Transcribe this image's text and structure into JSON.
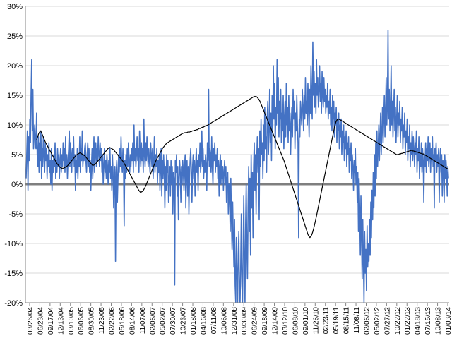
{
  "chart_data": {
    "type": "line",
    "title": "",
    "xlabel": "",
    "ylabel": "",
    "ylim": [
      -20,
      30
    ],
    "y_ticks": [
      "30%",
      "25%",
      "20%",
      "15%",
      "10%",
      "5%",
      "0%",
      "-5%",
      "-10%",
      "-15%",
      "-20%"
    ],
    "y_tick_values": [
      30,
      25,
      20,
      15,
      10,
      5,
      0,
      -5,
      -10,
      -15,
      -20
    ],
    "x_ticks": [
      "03/26/04",
      "06/23/04",
      "09/17/04",
      "12/13/04",
      "03/10/05",
      "06/06/05",
      "08/30/05",
      "11/23/05",
      "02/22/06",
      "05/18/06",
      "08/14/06",
      "11/07/06",
      "02/06/07",
      "05/02/07",
      "07/30/07",
      "10/23/07",
      "01/18/08",
      "04/16/08",
      "07/11/08",
      "10/06/08",
      "12/31/08",
      "03/30/09",
      "06/24/09",
      "09/18/09",
      "12/14/09",
      "03/12/10",
      "06/08/10",
      "09/01/10",
      "11/26/10",
      "02/23/11",
      "05/19/11",
      "08/15/11",
      "11/08/11",
      "02/06/12",
      "05/02/12",
      "07/27/12",
      "10/22/12",
      "01/22/13",
      "04/18/13",
      "07/15/13",
      "10/08/13",
      "01/03/14"
    ],
    "grid": true,
    "legend": "none",
    "colors": {
      "weekly": "#4472C4",
      "moving_average": "#000000",
      "zero_line": "#7F7F7F",
      "grid": "#D9D9D9",
      "axis": "#868686"
    },
    "series": [
      {
        "values": [
          1,
          5,
          9,
          -1,
          8,
          4,
          11,
          7,
          15,
          21,
          9,
          16,
          6,
          8,
          10,
          7,
          6,
          12,
          5,
          3,
          8,
          2,
          7,
          4,
          9,
          1,
          6,
          3,
          8,
          5,
          2,
          7,
          4,
          6,
          1,
          5,
          3,
          7,
          2,
          4,
          0,
          6,
          -1,
          4,
          2,
          5,
          3,
          7,
          1,
          4,
          2,
          6,
          3,
          5,
          1,
          4,
          6,
          2,
          5,
          3,
          7,
          4,
          6,
          2,
          8,
          3,
          5,
          1,
          4,
          6,
          9,
          3,
          7,
          5,
          2,
          6,
          4,
          8,
          3,
          5,
          -1,
          4,
          2,
          6,
          1,
          5,
          3,
          8,
          2,
          6,
          4,
          9,
          3,
          5,
          4,
          6,
          7,
          4,
          2,
          5,
          7,
          3,
          6,
          2,
          4,
          -1,
          3,
          6,
          1,
          4,
          8,
          2,
          5,
          7,
          3,
          6,
          4,
          8,
          5,
          3,
          7,
          4,
          6,
          2,
          5,
          0,
          3,
          6,
          2,
          4,
          1,
          5,
          3,
          0,
          4,
          2,
          6,
          1,
          3,
          -1,
          5,
          2,
          -4,
          1,
          3,
          -13,
          2,
          4,
          -3,
          1,
          5,
          2,
          6,
          3,
          8,
          4,
          2,
          6,
          3,
          -7,
          4,
          1,
          5,
          2,
          6,
          3,
          7,
          4,
          2,
          5,
          3,
          6,
          4,
          7,
          2,
          10,
          4,
          6,
          3,
          5,
          8,
          4,
          6,
          2,
          9,
          5,
          3,
          7,
          4,
          6,
          2,
          11,
          5,
          3,
          7,
          4,
          8,
          5,
          3,
          6,
          4,
          2,
          7,
          5,
          3,
          6,
          1,
          4,
          8,
          2,
          5,
          3,
          6,
          0,
          4,
          2,
          5,
          -1,
          3,
          6,
          -2,
          4,
          1,
          5,
          2,
          -4,
          3,
          -1,
          5,
          2,
          4,
          -3,
          1,
          3,
          -2,
          4,
          0,
          3,
          -5,
          2,
          1,
          -17,
          4,
          2,
          5,
          -2,
          3,
          -6,
          1,
          4,
          2,
          -3,
          3,
          0,
          4,
          2,
          -1,
          3,
          5,
          -4,
          2,
          4,
          -2,
          3,
          -5,
          1,
          4,
          6,
          2,
          -3,
          3,
          5,
          1,
          4,
          -2,
          3,
          6,
          2,
          4,
          -1,
          5,
          3,
          7,
          2,
          4,
          9,
          3,
          6,
          1,
          4,
          2,
          5,
          3,
          -1,
          7,
          4,
          16,
          3,
          6,
          5,
          2,
          8,
          3,
          0,
          6,
          4,
          7,
          2,
          5,
          3,
          6,
          1,
          4,
          -2,
          3,
          5,
          0,
          4,
          1,
          3,
          -1,
          2,
          4,
          0,
          3,
          -3,
          1,
          2,
          -5,
          0,
          -2,
          -8,
          1,
          -6,
          -11,
          -3,
          -9,
          -14,
          -6,
          -17,
          -21,
          -9,
          -15,
          -24,
          -12,
          -8,
          -19,
          -26,
          -14,
          -5,
          -17,
          -23,
          -11,
          -2,
          -13,
          -20,
          -7,
          0,
          -11,
          -16,
          -4,
          3,
          -8,
          1,
          -12,
          5,
          -4,
          2,
          -9,
          3,
          7,
          -1,
          5,
          -5,
          4,
          8,
          2,
          6,
          -6,
          9,
          3,
          11,
          5,
          7,
          1,
          10,
          4,
          13,
          6,
          8,
          2,
          11,
          14,
          5,
          9,
          16,
          7,
          12,
          4,
          15,
          9,
          20,
          11,
          17,
          6,
          13,
          10,
          21,
          12,
          18,
          8,
          14,
          11,
          16,
          7,
          12,
          9,
          15,
          6,
          11,
          14,
          8,
          17,
          10,
          13,
          7,
          15,
          9,
          12,
          5,
          10,
          13,
          8,
          16,
          11,
          14,
          6,
          12,
          9,
          15,
          10,
          7,
          -9,
          11,
          8,
          14,
          12,
          10,
          16,
          13,
          9,
          15,
          11,
          18,
          12,
          14,
          10,
          17,
          13,
          8,
          16,
          12,
          20,
          14,
          11,
          24,
          15,
          19,
          13,
          17,
          12,
          21,
          15,
          18,
          13,
          16,
          20,
          14,
          17,
          12,
          19,
          15,
          13,
          18,
          14,
          16,
          12,
          15,
          13,
          17,
          11,
          14,
          12,
          16,
          10,
          13,
          9,
          15,
          11,
          14,
          8,
          12,
          10,
          13,
          7,
          11,
          9,
          12,
          6,
          10,
          8,
          11,
          5,
          9,
          7,
          10,
          4,
          8,
          6,
          9,
          3,
          7,
          5,
          8,
          2,
          6,
          4,
          7,
          1,
          5,
          3,
          -1,
          4,
          2,
          6,
          0,
          3,
          -3,
          2,
          -8,
          1,
          -4,
          -12,
          -2,
          -9,
          -16,
          -6,
          -13,
          -20,
          -8,
          -15,
          -11,
          -18,
          -7,
          -14,
          -10,
          -13,
          -6,
          -12,
          -3,
          -9,
          -1,
          -6,
          2,
          -4,
          5,
          -2,
          7,
          1,
          9,
          3,
          6,
          10,
          4,
          8,
          12,
          5,
          9,
          13,
          7,
          11,
          15,
          8,
          12,
          18,
          10,
          14,
          26,
          11,
          16,
          9,
          13,
          20,
          10,
          14,
          8,
          12,
          16,
          9,
          13,
          7,
          11,
          15,
          8,
          12,
          10,
          14,
          7,
          11,
          9,
          13,
          6,
          10,
          8,
          12,
          5,
          9,
          7,
          11,
          4,
          8,
          6,
          10,
          3,
          7,
          5,
          9,
          4,
          8,
          6,
          3,
          7,
          5,
          9,
          2,
          6,
          4,
          8,
          1,
          5,
          3,
          7,
          2,
          6,
          4,
          -3,
          5,
          3,
          7,
          2,
          6,
          4,
          8,
          3,
          5,
          7,
          2,
          6,
          4,
          8,
          3,
          5,
          -4,
          6,
          4,
          7,
          2,
          5,
          3,
          6,
          -3,
          4,
          6,
          2,
          5,
          -2,
          4,
          3,
          -3,
          5,
          1,
          4,
          2,
          -2,
          3,
          1
        ]
      },
      {
        "values": [
          null,
          null,
          null,
          null,
          null,
          null,
          null,
          null,
          null,
          null,
          null,
          7.5,
          8,
          8.5,
          8.8,
          9,
          8.7,
          8.3,
          7.9,
          7.5,
          7.1,
          6.8,
          6.5,
          6.2,
          5.9,
          5.6,
          5.3,
          5,
          4.7,
          4.4,
          4.1,
          3.8,
          3.5,
          3.3,
          3.1,
          2.9,
          2.8,
          2.7,
          2.7,
          2.7,
          2.8,
          2.9,
          3,
          3.1,
          3.3,
          3.5,
          3.7,
          3.9,
          4.1,
          4.3,
          4.5,
          4.7,
          4.9,
          5,
          5.1,
          5.2,
          5.3,
          5.2,
          5.1,
          5,
          4.9,
          4.8,
          4.6,
          4.4,
          4.2,
          4,
          3.8,
          3.6,
          3.4,
          3.2,
          3.2,
          3.3,
          3.4,
          3.6,
          3.8,
          4,
          4.2,
          4.4,
          4.6,
          4.8,
          5,
          5.2,
          5.4,
          5.6,
          5.8,
          6,
          6.1,
          6.2,
          6.1,
          6,
          5.9,
          5.8,
          5.6,
          5.4,
          5.2,
          5,
          4.8,
          4.6,
          4.4,
          4.2,
          4,
          3.8,
          3.5,
          3.2,
          2.9,
          2.6,
          2.3,
          2,
          1.7,
          1.4,
          1.1,
          0.8,
          0.5,
          0.2,
          -0.1,
          -0.4,
          -0.7,
          -1,
          -1.2,
          -1.4,
          -1.3,
          -1.2,
          -1,
          -0.7,
          -0.4,
          0,
          0.4,
          0.8,
          1.2,
          1.6,
          2,
          2.4,
          2.8,
          3.2,
          3.6,
          4,
          4.3,
          4.6,
          4.9,
          5.2,
          5.5,
          5.8,
          6.1,
          6.3,
          6.5,
          6.7,
          6.9,
          7,
          7.1,
          7.2,
          7.3,
          7.4,
          7.5,
          7.6,
          7.7,
          7.8,
          7.9,
          8,
          8.1,
          8.2,
          8.3,
          8.4,
          8.5,
          8.6,
          8.6,
          8.7,
          8.7,
          8.7,
          8.8,
          8.8,
          8.8,
          8.9,
          8.9,
          9,
          9,
          9.1,
          9.1,
          9.2,
          9.2,
          9.3,
          9.4,
          9.4,
          9.5,
          9.6,
          9.6,
          9.7,
          9.8,
          9.9,
          9.9,
          10,
          10.1,
          10.2,
          10.3,
          10.4,
          10.5,
          10.6,
          10.7,
          10.8,
          10.9,
          11,
          11.1,
          11.2,
          11.3,
          11.4,
          11.5,
          11.6,
          11.7,
          11.8,
          11.9,
          12,
          12.1,
          12.2,
          12.3,
          12.4,
          12.5,
          12.6,
          12.7,
          12.8,
          12.9,
          13,
          13.1,
          13.2,
          13.3,
          13.4,
          13.5,
          13.6,
          13.7,
          13.8,
          13.9,
          14,
          14.1,
          14.2,
          14.3,
          14.4,
          14.5,
          14.6,
          14.7,
          14.8,
          14.8,
          14.8,
          14.7,
          14.5,
          14.3,
          14,
          13.6,
          13.2,
          12.8,
          12.4,
          12,
          11.6,
          11.2,
          10.8,
          10.4,
          10,
          9.6,
          9.2,
          8.8,
          8.4,
          8,
          7.6,
          7.2,
          6.8,
          6.4,
          6,
          5.6,
          5.2,
          4.8,
          4.4,
          4,
          3.5,
          3,
          2.5,
          2,
          1.5,
          1,
          0.5,
          0,
          -0.5,
          -1,
          -1.5,
          -2,
          -2.5,
          -3,
          -3.5,
          -4,
          -4.5,
          -5,
          -5.5,
          -6,
          -6.5,
          -7,
          -7.5,
          -8,
          -8.5,
          -8.8,
          -9,
          -8.8,
          -8.5,
          -8,
          -7.4,
          -6.7,
          -6,
          -5.2,
          -4.4,
          -3.6,
          -2.8,
          -2,
          -1.2,
          -0.4,
          0.4,
          1.2,
          2,
          2.8,
          3.6,
          4.4,
          5.2,
          6,
          6.8,
          7.6,
          8.4,
          9.2,
          10,
          10.5,
          10.8,
          11,
          11,
          10.9,
          10.8,
          10.7,
          10.6,
          10.5,
          10.4,
          10.3,
          10.2,
          10.1,
          10,
          9.9,
          9.8,
          9.7,
          9.6,
          9.5,
          9.4,
          9.3,
          9.2,
          9.1,
          9,
          8.9,
          8.8,
          8.7,
          8.6,
          8.5,
          8.4,
          8.3,
          8.2,
          8.1,
          8,
          7.9,
          7.8,
          7.7,
          7.6,
          7.5,
          7.4,
          7.3,
          7.2,
          7.1,
          7,
          6.9,
          6.8,
          6.7,
          6.6,
          6.5,
          6.4,
          6.3,
          6.2,
          6.1,
          6,
          5.9,
          5.8,
          5.7,
          5.6,
          5.5,
          5.4,
          5.3,
          5.2,
          5.1,
          5,
          5,
          5,
          5.1,
          5.1,
          5.2,
          5.2,
          5.3,
          5.3,
          5.4,
          5.4,
          5.5,
          5.5,
          5.6,
          5.6,
          5.7,
          5.7,
          5.6,
          5.6,
          5.5,
          5.5,
          5.4,
          5.4,
          5.3,
          5.3,
          5.2,
          5.2,
          5.1,
          5.1,
          5,
          4.9,
          4.8,
          4.7,
          4.6,
          4.5,
          4.4,
          4.3,
          4.2,
          4.1,
          4,
          3.9,
          3.8,
          3.7,
          3.6,
          3.5,
          3.4,
          3.3,
          3.2,
          3.1,
          3,
          2.9,
          2.8,
          2.7,
          2.6,
          2.5
        ]
      }
    ]
  }
}
